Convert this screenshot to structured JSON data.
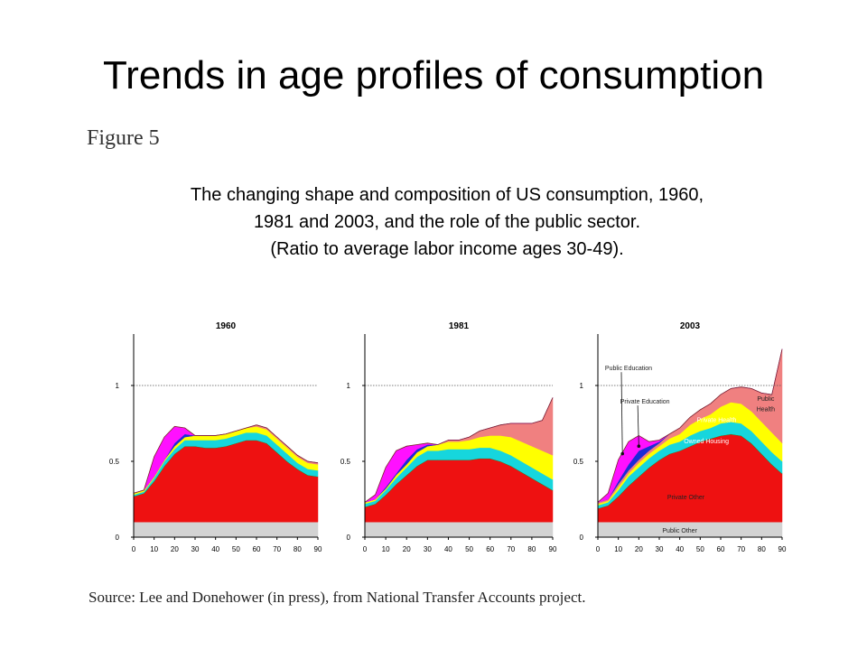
{
  "slide": {
    "title": "Trends in age profiles of consumption",
    "figure_label": "Figure 5",
    "caption": [
      "The changing shape and composition of US consumption, 1960,",
      "1981 and 2003, and the role of the public sector.",
      "(Ratio to average labor income ages 30-49)."
    ],
    "source": "Source: Lee and Donehower (in press), from National Transfer Accounts project."
  },
  "colors": {
    "public_other": "#d3d3d3",
    "private_other": "#ee1111",
    "owned_housing": "#16d6dd",
    "private_health": "#ffff00",
    "public_health": "#f08080",
    "private_education": "#1d2bd6",
    "public_education": "#ff10ff",
    "private_other_outline": "#1a8a1a"
  },
  "chart_data": [
    {
      "type": "area",
      "title": "1960",
      "x": [
        0,
        5,
        10,
        15,
        20,
        25,
        30,
        35,
        40,
        45,
        50,
        55,
        60,
        65,
        70,
        75,
        80,
        85,
        90
      ],
      "x_ticks": [
        "0",
        "10",
        "20",
        "30",
        "40",
        "50",
        "60",
        "70",
        "80",
        "90"
      ],
      "y_ticks": [
        "0",
        "0.5",
        "1"
      ],
      "ylim": [
        0,
        1.3
      ],
      "reference_line": 1,
      "series": [
        {
          "key": "public_other",
          "values": [
            0.1,
            0.1,
            0.1,
            0.1,
            0.1,
            0.1,
            0.1,
            0.1,
            0.1,
            0.1,
            0.1,
            0.1,
            0.1,
            0.1,
            0.1,
            0.1,
            0.1,
            0.1,
            0.1
          ]
        },
        {
          "key": "private_other",
          "values": [
            0.17,
            0.19,
            0.27,
            0.37,
            0.45,
            0.5,
            0.5,
            0.49,
            0.49,
            0.5,
            0.52,
            0.54,
            0.54,
            0.52,
            0.46,
            0.4,
            0.35,
            0.31,
            0.3
          ]
        },
        {
          "key": "owned_housing",
          "values": [
            0.01,
            0.01,
            0.02,
            0.03,
            0.03,
            0.04,
            0.04,
            0.05,
            0.05,
            0.05,
            0.05,
            0.05,
            0.05,
            0.05,
            0.05,
            0.05,
            0.04,
            0.04,
            0.04
          ]
        },
        {
          "key": "private_health",
          "values": [
            0.01,
            0.01,
            0.01,
            0.01,
            0.02,
            0.02,
            0.03,
            0.03,
            0.03,
            0.03,
            0.03,
            0.03,
            0.04,
            0.04,
            0.04,
            0.04,
            0.04,
            0.04,
            0.04
          ]
        },
        {
          "key": "public_health",
          "values": [
            0,
            0,
            0,
            0,
            0,
            0,
            0,
            0,
            0,
            0,
            0,
            0,
            0.01,
            0.01,
            0.01,
            0.01,
            0.01,
            0.01,
            0.01
          ]
        },
        {
          "key": "private_education",
          "values": [
            0,
            0,
            0,
            0,
            0.02,
            0.02,
            0,
            0,
            0,
            0,
            0,
            0,
            0,
            0,
            0,
            0,
            0,
            0,
            0
          ]
        },
        {
          "key": "public_education",
          "values": [
            0,
            0,
            0.13,
            0.15,
            0.11,
            0.04,
            0,
            0,
            0,
            0,
            0,
            0,
            0,
            0,
            0,
            0,
            0,
            0,
            0
          ]
        }
      ],
      "labels": []
    },
    {
      "type": "area",
      "title": "1981",
      "x": [
        0,
        5,
        10,
        15,
        20,
        25,
        30,
        35,
        40,
        45,
        50,
        55,
        60,
        65,
        70,
        75,
        80,
        85,
        90
      ],
      "x_ticks": [
        "0",
        "10",
        "20",
        "30",
        "40",
        "50",
        "60",
        "70",
        "80",
        "90"
      ],
      "y_ticks": [
        "0",
        "0.5",
        "1"
      ],
      "ylim": [
        0,
        1.3
      ],
      "reference_line": 1,
      "series": [
        {
          "key": "public_other",
          "values": [
            0.1,
            0.1,
            0.1,
            0.1,
            0.1,
            0.1,
            0.1,
            0.1,
            0.1,
            0.1,
            0.1,
            0.1,
            0.1,
            0.1,
            0.1,
            0.1,
            0.1,
            0.1,
            0.1
          ]
        },
        {
          "key": "private_other",
          "values": [
            0.1,
            0.12,
            0.18,
            0.25,
            0.31,
            0.37,
            0.41,
            0.41,
            0.41,
            0.41,
            0.41,
            0.42,
            0.42,
            0.4,
            0.37,
            0.33,
            0.29,
            0.25,
            0.21
          ]
        },
        {
          "key": "owned_housing",
          "values": [
            0.02,
            0.02,
            0.03,
            0.04,
            0.05,
            0.06,
            0.06,
            0.06,
            0.07,
            0.07,
            0.07,
            0.07,
            0.07,
            0.07,
            0.07,
            0.07,
            0.07,
            0.07,
            0.07
          ]
        },
        {
          "key": "private_health",
          "values": [
            0.01,
            0.01,
            0.01,
            0.02,
            0.02,
            0.03,
            0.03,
            0.04,
            0.05,
            0.05,
            0.06,
            0.07,
            0.08,
            0.1,
            0.12,
            0.13,
            0.14,
            0.15,
            0.16
          ]
        },
        {
          "key": "public_health",
          "values": [
            0,
            0,
            0,
            0,
            0,
            0,
            0,
            0,
            0.01,
            0.01,
            0.02,
            0.04,
            0.05,
            0.07,
            0.09,
            0.12,
            0.15,
            0.2,
            0.38
          ]
        },
        {
          "key": "private_education",
          "values": [
            0,
            0,
            0.01,
            0.01,
            0.03,
            0.02,
            0.01,
            0,
            0,
            0,
            0,
            0,
            0,
            0,
            0,
            0,
            0,
            0,
            0
          ]
        },
        {
          "key": "public_education",
          "values": [
            0,
            0.03,
            0.13,
            0.15,
            0.09,
            0.03,
            0.01,
            0,
            0,
            0,
            0,
            0,
            0,
            0,
            0,
            0,
            0,
            0,
            0
          ]
        }
      ],
      "labels": []
    },
    {
      "type": "area",
      "title": "2003",
      "x": [
        0,
        5,
        10,
        15,
        20,
        25,
        30,
        35,
        40,
        45,
        50,
        55,
        60,
        65,
        70,
        75,
        80,
        85,
        90
      ],
      "x_ticks": [
        "0",
        "10",
        "20",
        "30",
        "40",
        "50",
        "60",
        "70",
        "80",
        "90"
      ],
      "y_ticks": [
        "0",
        "0.5",
        "1"
      ],
      "ylim": [
        0,
        1.3
      ],
      "reference_line": 1,
      "series": [
        {
          "key": "public_other",
          "values": [
            0.1,
            0.1,
            0.1,
            0.1,
            0.1,
            0.1,
            0.1,
            0.1,
            0.1,
            0.1,
            0.1,
            0.1,
            0.1,
            0.1,
            0.1,
            0.1,
            0.1,
            0.1,
            0.1
          ]
        },
        {
          "key": "private_other",
          "values": [
            0.09,
            0.11,
            0.17,
            0.24,
            0.3,
            0.36,
            0.41,
            0.45,
            0.47,
            0.5,
            0.53,
            0.55,
            0.57,
            0.58,
            0.57,
            0.52,
            0.45,
            0.38,
            0.32
          ]
        },
        {
          "key": "owned_housing",
          "values": [
            0.02,
            0.02,
            0.04,
            0.06,
            0.06,
            0.06,
            0.06,
            0.06,
            0.06,
            0.07,
            0.07,
            0.07,
            0.08,
            0.08,
            0.08,
            0.08,
            0.08,
            0.08,
            0.08
          ]
        },
        {
          "key": "private_health",
          "values": [
            0.01,
            0.01,
            0.02,
            0.02,
            0.03,
            0.03,
            0.03,
            0.04,
            0.05,
            0.07,
            0.08,
            0.09,
            0.11,
            0.13,
            0.13,
            0.13,
            0.13,
            0.13,
            0.12
          ]
        },
        {
          "key": "public_health",
          "values": [
            0.01,
            0.01,
            0.02,
            0.02,
            0.02,
            0.02,
            0.02,
            0.03,
            0.04,
            0.05,
            0.06,
            0.07,
            0.08,
            0.09,
            0.11,
            0.15,
            0.19,
            0.25,
            0.62
          ]
        },
        {
          "key": "private_education",
          "values": [
            0,
            0,
            0.02,
            0.04,
            0.06,
            0.03,
            0.01,
            0,
            0,
            0,
            0,
            0,
            0,
            0,
            0,
            0,
            0,
            0,
            0
          ]
        },
        {
          "key": "public_education",
          "values": [
            0,
            0.04,
            0.14,
            0.15,
            0.1,
            0.03,
            0.01,
            0,
            0,
            0,
            0,
            0,
            0,
            0,
            0,
            0,
            0,
            0,
            0
          ]
        }
      ],
      "labels": [
        {
          "text": "Public Education",
          "x": 15,
          "y": 1.1,
          "color": "#222",
          "arrow_to": [
            12,
            0.55
          ]
        },
        {
          "text": "Private Education",
          "x": 23,
          "y": 0.88,
          "color": "#222",
          "arrow_to": [
            20,
            0.6
          ]
        },
        {
          "text": "Public",
          "x": 82,
          "y": 0.9,
          "color": "#222"
        },
        {
          "text": "Health",
          "x": 82,
          "y": 0.83,
          "color": "#222"
        },
        {
          "text": "Private Health",
          "x": 58,
          "y": 0.76,
          "color": "#ffffff"
        },
        {
          "text": "Owned Housing",
          "x": 53,
          "y": 0.62,
          "color": "#ffffff"
        },
        {
          "text": "Private Other",
          "x": 43,
          "y": 0.25,
          "color": "#222"
        },
        {
          "text": "Public Other",
          "x": 40,
          "y": 0.03,
          "color": "#222"
        }
      ]
    }
  ]
}
